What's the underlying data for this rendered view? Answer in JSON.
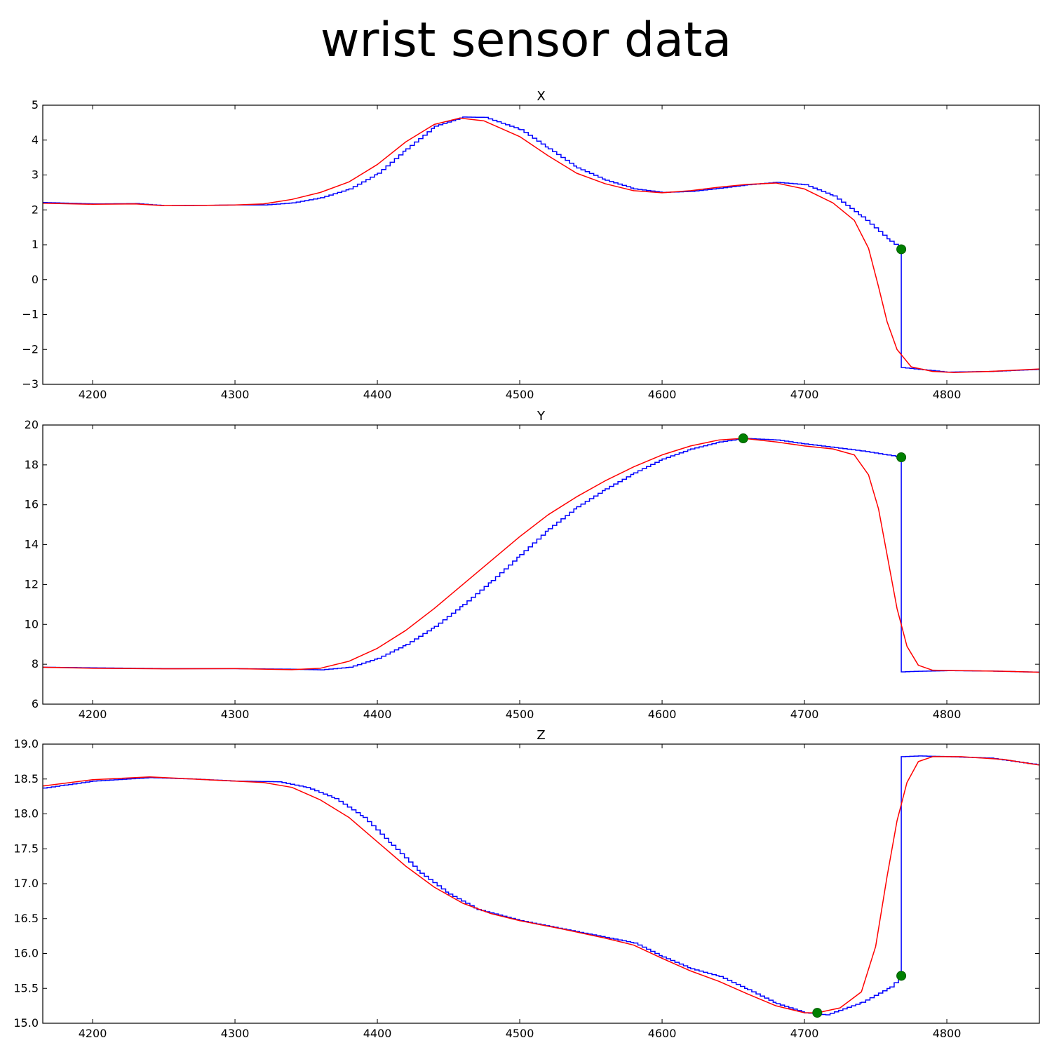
{
  "figure": {
    "title": "wrist sensor data"
  },
  "chart_data": [
    {
      "type": "line",
      "title": "X",
      "xlim": [
        4165,
        4865
      ],
      "ylim": [
        -3,
        5
      ],
      "xticks": [
        4200,
        4300,
        4400,
        4500,
        4600,
        4700,
        4800
      ],
      "yticks": [
        -3,
        -2,
        -1,
        0,
        1,
        2,
        3,
        4,
        5
      ],
      "ytick_labels": [
        "−3",
        "−2",
        "−1",
        "0",
        "1",
        "2",
        "3",
        "4",
        "5"
      ],
      "grid": false,
      "series": [
        {
          "color": "#0000ff",
          "step": true,
          "points": [
            [
              4165,
              2.21
            ],
            [
              4200,
              2.17
            ],
            [
              4230,
              2.18
            ],
            [
              4250,
              2.12
            ],
            [
              4280,
              2.13
            ],
            [
              4300,
              2.14
            ],
            [
              4320,
              2.14
            ],
            [
              4340,
              2.2
            ],
            [
              4360,
              2.35
            ],
            [
              4380,
              2.6
            ],
            [
              4400,
              3.05
            ],
            [
              4420,
              3.75
            ],
            [
              4440,
              4.4
            ],
            [
              4460,
              4.66
            ],
            [
              4475,
              4.65
            ],
            [
              4500,
              4.3
            ],
            [
              4520,
              3.75
            ],
            [
              4540,
              3.2
            ],
            [
              4560,
              2.85
            ],
            [
              4580,
              2.6
            ],
            [
              4600,
              2.5
            ],
            [
              4620,
              2.53
            ],
            [
              4640,
              2.62
            ],
            [
              4660,
              2.72
            ],
            [
              4680,
              2.79
            ],
            [
              4700,
              2.72
            ],
            [
              4720,
              2.4
            ],
            [
              4740,
              1.8
            ],
            [
              4760,
              1.1
            ],
            [
              4768,
              0.87
            ],
            [
              4768,
              -2.52
            ],
            [
              4780,
              -2.57
            ],
            [
              4800,
              -2.65
            ],
            [
              4830,
              -2.63
            ],
            [
              4865,
              -2.57
            ]
          ]
        },
        {
          "color": "#ff0000",
          "step": false,
          "points": [
            [
              4165,
              2.19
            ],
            [
              4200,
              2.16
            ],
            [
              4230,
              2.17
            ],
            [
              4250,
              2.12
            ],
            [
              4280,
              2.13
            ],
            [
              4300,
              2.14
            ],
            [
              4320,
              2.17
            ],
            [
              4340,
              2.3
            ],
            [
              4360,
              2.5
            ],
            [
              4380,
              2.8
            ],
            [
              4400,
              3.3
            ],
            [
              4420,
              3.95
            ],
            [
              4440,
              4.45
            ],
            [
              4458,
              4.63
            ],
            [
              4475,
              4.55
            ],
            [
              4500,
              4.1
            ],
            [
              4520,
              3.55
            ],
            [
              4540,
              3.05
            ],
            [
              4560,
              2.75
            ],
            [
              4580,
              2.55
            ],
            [
              4600,
              2.49
            ],
            [
              4620,
              2.55
            ],
            [
              4640,
              2.65
            ],
            [
              4660,
              2.73
            ],
            [
              4680,
              2.77
            ],
            [
              4700,
              2.6
            ],
            [
              4720,
              2.2
            ],
            [
              4735,
              1.7
            ],
            [
              4745,
              0.9
            ],
            [
              4752,
              -0.2
            ],
            [
              4758,
              -1.2
            ],
            [
              4765,
              -2.0
            ],
            [
              4775,
              -2.5
            ],
            [
              4790,
              -2.63
            ],
            [
              4805,
              -2.66
            ],
            [
              4830,
              -2.63
            ],
            [
              4865,
              -2.56
            ]
          ]
        },
        {
          "color": "#008000",
          "marker": true,
          "points": [
            [
              4768,
              0.87
            ]
          ]
        }
      ]
    },
    {
      "type": "line",
      "title": "Y",
      "xlim": [
        4165,
        4865
      ],
      "ylim": [
        6,
        20
      ],
      "xticks": [
        4200,
        4300,
        4400,
        4500,
        4600,
        4700,
        4800
      ],
      "yticks": [
        6,
        8,
        10,
        12,
        14,
        16,
        18,
        20
      ],
      "ytick_labels": [
        "6",
        "8",
        "10",
        "12",
        "14",
        "16",
        "18",
        "20"
      ],
      "grid": false,
      "series": [
        {
          "color": "#0000ff",
          "step": true,
          "points": [
            [
              4165,
              7.85
            ],
            [
              4200,
              7.82
            ],
            [
              4250,
              7.78
            ],
            [
              4300,
              7.78
            ],
            [
              4340,
              7.75
            ],
            [
              4360,
              7.72
            ],
            [
              4380,
              7.85
            ],
            [
              4400,
              8.3
            ],
            [
              4420,
              9.0
            ],
            [
              4440,
              9.9
            ],
            [
              4460,
              11.0
            ],
            [
              4480,
              12.2
            ],
            [
              4500,
              13.5
            ],
            [
              4520,
              14.8
            ],
            [
              4540,
              15.9
            ],
            [
              4560,
              16.8
            ],
            [
              4580,
              17.6
            ],
            [
              4600,
              18.3
            ],
            [
              4620,
              18.8
            ],
            [
              4640,
              19.15
            ],
            [
              4657,
              19.33
            ],
            [
              4680,
              19.25
            ],
            [
              4700,
              19.05
            ],
            [
              4740,
              18.7
            ],
            [
              4768,
              18.38
            ],
            [
              4768,
              7.62
            ],
            [
              4780,
              7.65
            ],
            [
              4800,
              7.68
            ],
            [
              4830,
              7.66
            ],
            [
              4865,
              7.6
            ]
          ]
        },
        {
          "color": "#ff0000",
          "step": false,
          "points": [
            [
              4165,
              7.85
            ],
            [
              4200,
              7.8
            ],
            [
              4250,
              7.77
            ],
            [
              4300,
              7.78
            ],
            [
              4340,
              7.73
            ],
            [
              4360,
              7.8
            ],
            [
              4380,
              8.15
            ],
            [
              4400,
              8.8
            ],
            [
              4420,
              9.7
            ],
            [
              4440,
              10.8
            ],
            [
              4460,
              12.0
            ],
            [
              4480,
              13.2
            ],
            [
              4500,
              14.4
            ],
            [
              4520,
              15.5
            ],
            [
              4540,
              16.4
            ],
            [
              4560,
              17.2
            ],
            [
              4580,
              17.9
            ],
            [
              4600,
              18.5
            ],
            [
              4620,
              18.95
            ],
            [
              4640,
              19.25
            ],
            [
              4657,
              19.33
            ],
            [
              4680,
              19.15
            ],
            [
              4700,
              18.95
            ],
            [
              4720,
              18.8
            ],
            [
              4735,
              18.5
            ],
            [
              4745,
              17.5
            ],
            [
              4752,
              15.8
            ],
            [
              4758,
              13.5
            ],
            [
              4765,
              10.8
            ],
            [
              4772,
              8.9
            ],
            [
              4780,
              7.95
            ],
            [
              4790,
              7.7
            ],
            [
              4810,
              7.68
            ],
            [
              4840,
              7.65
            ],
            [
              4865,
              7.6
            ]
          ]
        },
        {
          "color": "#008000",
          "marker": true,
          "points": [
            [
              4657,
              19.33
            ],
            [
              4768,
              18.38
            ]
          ]
        }
      ]
    },
    {
      "type": "line",
      "title": "Z",
      "xlim": [
        4165,
        4865
      ],
      "ylim": [
        15.0,
        19.0
      ],
      "xticks": [
        4200,
        4300,
        4400,
        4500,
        4600,
        4700,
        4800
      ],
      "yticks": [
        15.0,
        15.5,
        16.0,
        16.5,
        17.0,
        17.5,
        18.0,
        18.5,
        19.0
      ],
      "ytick_labels": [
        "15.0",
        "15.5",
        "16.0",
        "16.5",
        "17.0",
        "17.5",
        "18.0",
        "18.5",
        "19.0"
      ],
      "grid": false,
      "series": [
        {
          "color": "#0000ff",
          "step": true,
          "points": [
            [
              4165,
              18.37
            ],
            [
              4200,
              18.47
            ],
            [
              4240,
              18.52
            ],
            [
              4270,
              18.5
            ],
            [
              4300,
              18.47
            ],
            [
              4330,
              18.46
            ],
            [
              4350,
              18.38
            ],
            [
              4370,
              18.22
            ],
            [
              4390,
              17.95
            ],
            [
              4410,
              17.55
            ],
            [
              4430,
              17.15
            ],
            [
              4450,
              16.85
            ],
            [
              4470,
              16.63
            ],
            [
              4500,
              16.47
            ],
            [
              4530,
              16.35
            ],
            [
              4560,
              16.23
            ],
            [
              4580,
              16.15
            ],
            [
              4600,
              15.95
            ],
            [
              4620,
              15.78
            ],
            [
              4640,
              15.67
            ],
            [
              4660,
              15.48
            ],
            [
              4680,
              15.28
            ],
            [
              4700,
              15.15
            ],
            [
              4715,
              15.12
            ],
            [
              4740,
              15.3
            ],
            [
              4760,
              15.52
            ],
            [
              4768,
              15.68
            ],
            [
              4768,
              18.82
            ],
            [
              4780,
              18.83
            ],
            [
              4800,
              18.82
            ],
            [
              4830,
              18.8
            ],
            [
              4865,
              18.7
            ]
          ]
        },
        {
          "color": "#ff0000",
          "step": false,
          "points": [
            [
              4165,
              18.4
            ],
            [
              4200,
              18.49
            ],
            [
              4240,
              18.53
            ],
            [
              4270,
              18.5
            ],
            [
              4300,
              18.47
            ],
            [
              4320,
              18.45
            ],
            [
              4340,
              18.38
            ],
            [
              4360,
              18.2
            ],
            [
              4380,
              17.95
            ],
            [
              4400,
              17.6
            ],
            [
              4420,
              17.25
            ],
            [
              4440,
              16.95
            ],
            [
              4460,
              16.72
            ],
            [
              4480,
              16.57
            ],
            [
              4500,
              16.47
            ],
            [
              4530,
              16.35
            ],
            [
              4560,
              16.22
            ],
            [
              4580,
              16.12
            ],
            [
              4600,
              15.93
            ],
            [
              4620,
              15.75
            ],
            [
              4640,
              15.6
            ],
            [
              4660,
              15.42
            ],
            [
              4680,
              15.25
            ],
            [
              4700,
              15.15
            ],
            [
              4709,
              15.15
            ],
            [
              4725,
              15.22
            ],
            [
              4740,
              15.45
            ],
            [
              4750,
              16.1
            ],
            [
              4758,
              17.1
            ],
            [
              4765,
              17.9
            ],
            [
              4772,
              18.45
            ],
            [
              4780,
              18.75
            ],
            [
              4790,
              18.82
            ],
            [
              4810,
              18.82
            ],
            [
              4840,
              18.78
            ],
            [
              4865,
              18.7
            ]
          ]
        },
        {
          "color": "#008000",
          "marker": true,
          "points": [
            [
              4709,
              15.15
            ],
            [
              4768,
              15.68
            ]
          ]
        }
      ]
    }
  ]
}
